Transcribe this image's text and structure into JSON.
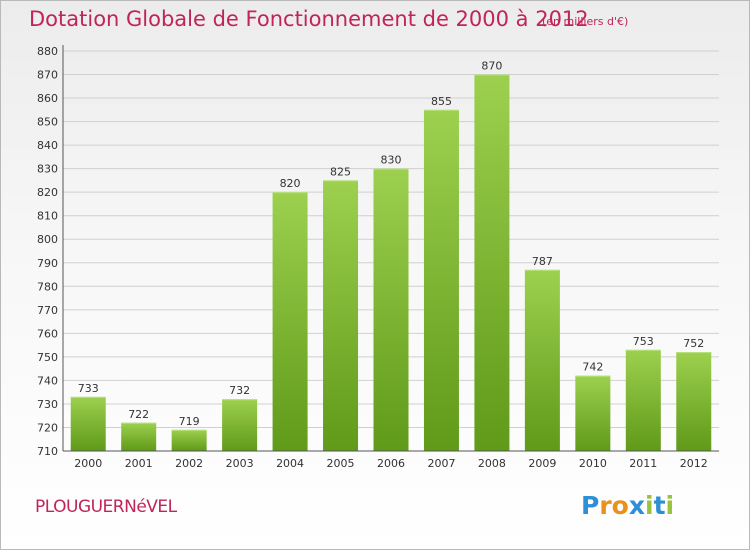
{
  "chart_data": {
    "type": "bar",
    "title": "Dotation Globale de Fonctionnement de 2000 à 2012",
    "subtitle": "(en milliers d'€)",
    "categories": [
      "2000",
      "2001",
      "2002",
      "2003",
      "2004",
      "2005",
      "2006",
      "2007",
      "2008",
      "2009",
      "2010",
      "2011",
      "2012"
    ],
    "values": [
      733,
      722,
      719,
      732,
      820,
      825,
      830,
      855,
      870,
      787,
      742,
      753,
      752
    ],
    "ylim": [
      710,
      880
    ],
    "yticks": [
      710,
      720,
      730,
      740,
      750,
      760,
      770,
      780,
      790,
      800,
      810,
      820,
      830,
      840,
      850,
      860,
      870,
      880
    ],
    "grid": true,
    "bar_color_top": "#9dd04f",
    "bar_color_bottom": "#5f9a18",
    "title_color": "#c0245a"
  },
  "commune": "PLOUGUERNéVEL",
  "logo": {
    "text": "Proxiti",
    "colors": [
      "#2f8fd6",
      "#e8911c",
      "#e8911c",
      "#2f8fd6",
      "#9ac23c",
      "#2f8fd6",
      "#9ac23c"
    ]
  }
}
